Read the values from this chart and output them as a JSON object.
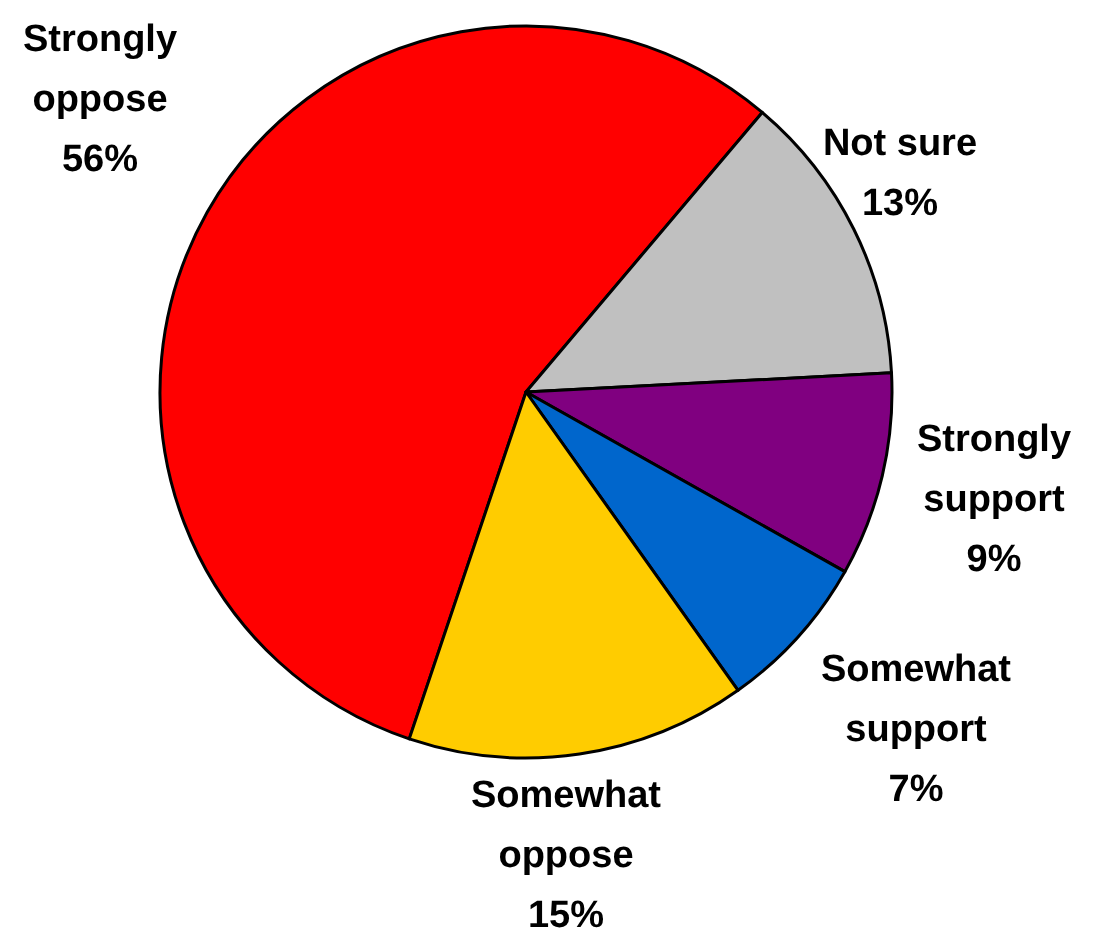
{
  "chart_data": {
    "type": "pie",
    "categories": [
      "Strongly oppose",
      "Not sure",
      "Strongly support",
      "Somewhat support",
      "Somewhat oppose"
    ],
    "values": [
      56,
      13,
      9,
      7,
      15
    ],
    "value_labels": [
      "56%",
      "13%",
      "9%",
      "7%",
      "15%"
    ],
    "colors": [
      "#ff0000",
      "#c0c0c0",
      "#800080",
      "#0066cc",
      "#ffcc00"
    ]
  }
}
